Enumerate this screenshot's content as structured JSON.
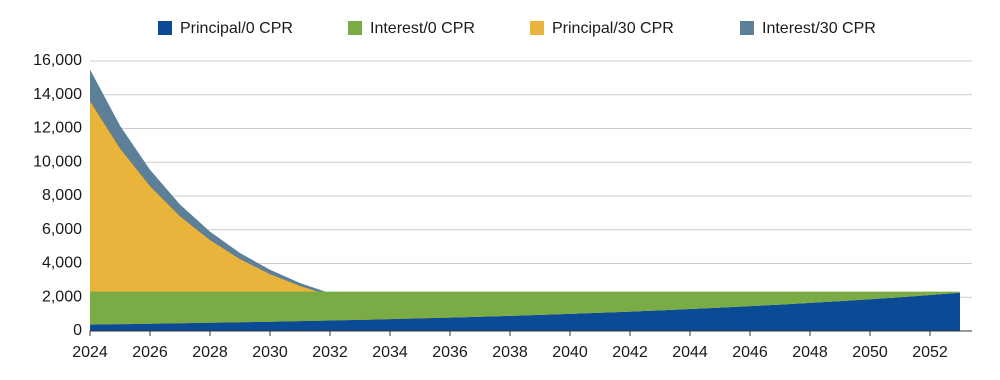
{
  "chart_data": {
    "type": "area",
    "stacked": true,
    "x": [
      2024,
      2025,
      2026,
      2027,
      2028,
      2029,
      2030,
      2031,
      2032,
      2033,
      2034,
      2035,
      2036,
      2037,
      2038,
      2039,
      2040,
      2041,
      2042,
      2043,
      2044,
      2045,
      2046,
      2047,
      2048,
      2049,
      2050,
      2051,
      2052,
      2053
    ],
    "series": [
      {
        "name": "Principal/0 CPR",
        "color": "#0b4a94",
        "stack": 0,
        "values": [
          380,
          404,
          430,
          457,
          486,
          517,
          550,
          585,
          622,
          661,
          703,
          748,
          795,
          846,
          899,
          957,
          1017,
          1082,
          1151,
          1224,
          1301,
          1384,
          1472,
          1565,
          1665,
          1771,
          1883,
          2002,
          2130,
          2265
        ]
      },
      {
        "name": "Interest/0 CPR",
        "color": "#7aab45",
        "stack": 0,
        "values": [
          1950,
          1926,
          1900,
          1873,
          1844,
          1813,
          1780,
          1745,
          1708,
          1669,
          1627,
          1582,
          1535,
          1484,
          1431,
          1373,
          1313,
          1248,
          1179,
          1106,
          1029,
          946,
          858,
          765,
          665,
          559,
          447,
          328,
          200,
          65
        ]
      },
      {
        "name": "Principal/30 CPR",
        "color": "#e8b43c",
        "stack": 1,
        "values": [
          13600,
          10800,
          8567,
          6789,
          5375,
          4253,
          3362,
          2656,
          2098,
          1656,
          1306,
          1030,
          812,
          639,
          504,
          397,
          312,
          246,
          194,
          152,
          119,
          94,
          74,
          58,
          46,
          37,
          29,
          23,
          18,
          14
        ]
      },
      {
        "name": "Interest/30 CPR",
        "color": "#5e7f98",
        "stack": 1,
        "values": [
          1900,
          1368,
          985,
          709,
          511,
          368,
          265,
          191,
          137,
          99,
          71,
          51,
          37,
          27,
          19,
          14,
          10,
          7,
          5,
          4,
          3,
          2,
          1,
          1,
          1,
          0,
          0,
          0,
          0,
          0
        ]
      }
    ],
    "xlim": [
      2024,
      2053.4
    ],
    "xticks": [
      2024,
      2026,
      2028,
      2030,
      2032,
      2034,
      2036,
      2038,
      2040,
      2042,
      2044,
      2046,
      2048,
      2050,
      2052
    ],
    "ylim": [
      0,
      16000
    ],
    "yticks": [
      0,
      {
        "value": 2000,
        "label": "2,000"
      },
      {
        "value": 4000,
        "label": "4,000"
      },
      {
        "value": 6000,
        "label": "6,000"
      },
      {
        "value": 8000,
        "label": "8,000"
      },
      {
        "value": 10000,
        "label": "10,000"
      },
      {
        "value": 12000,
        "label": "12,000"
      },
      {
        "value": 14000,
        "label": "14,000"
      },
      {
        "value": 16000,
        "label": "16,000"
      }
    ],
    "grid": true,
    "legend": "top"
  }
}
